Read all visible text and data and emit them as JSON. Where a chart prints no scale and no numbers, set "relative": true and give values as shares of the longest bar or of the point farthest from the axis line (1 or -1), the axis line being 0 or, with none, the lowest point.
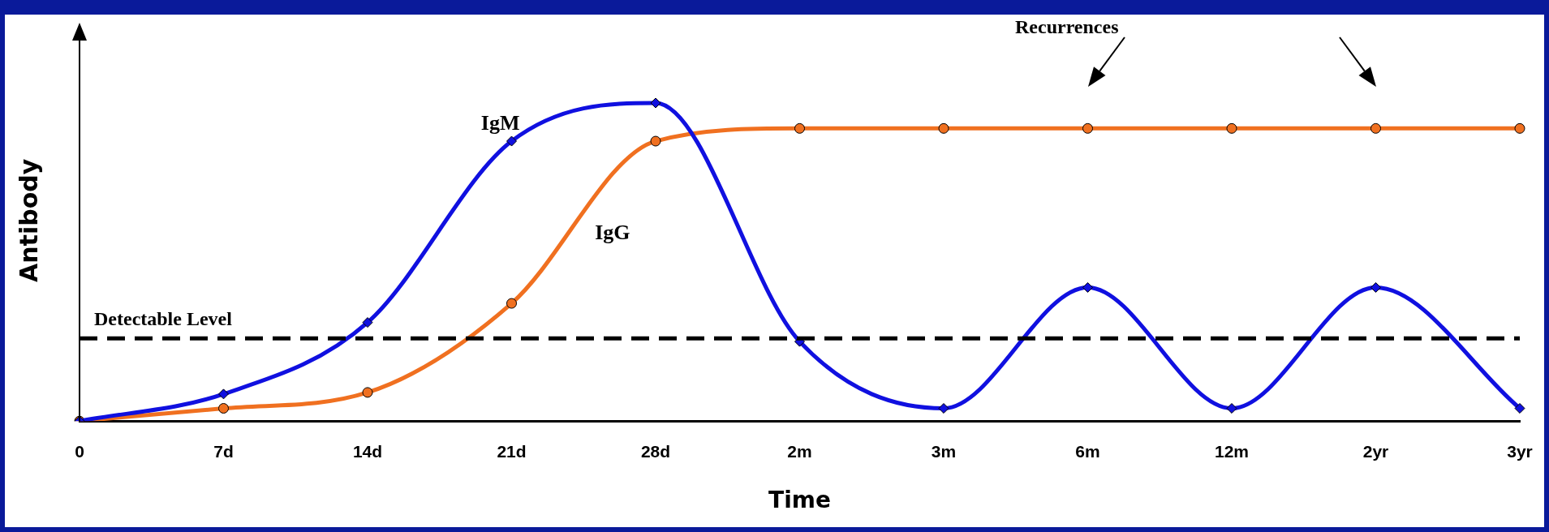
{
  "chart_data": {
    "type": "line",
    "relative": true,
    "xlabel": "Time",
    "ylabel": "Antibody",
    "categories": [
      "0",
      "7d",
      "14d",
      "21d",
      "28d",
      "2m",
      "3m",
      "6m",
      "12m",
      "2yr",
      "3yr"
    ],
    "series": [
      {
        "name": "IgM",
        "color": "#1010e0",
        "marker": "diamond",
        "values": [
          0,
          0.085,
          0.31,
          0.88,
          1,
          0.25,
          0.04,
          0.42,
          0.04,
          0.42,
          0.04
        ]
      },
      {
        "name": "IgG",
        "color": "#f07020",
        "marker": "circle",
        "values": [
          0,
          0.04,
          0.09,
          0.37,
          0.88,
          0.92,
          0.92,
          0.92,
          0.92,
          0.92,
          0.92
        ]
      }
    ],
    "ref_lines": [
      {
        "axis": "y",
        "value": 0.26,
        "label": "Detectable Level",
        "color": "#000000",
        "line_style": "dashed"
      }
    ],
    "annotations": [
      "Recurrences"
    ],
    "grid": false,
    "legend": false,
    "line_style": "solid"
  }
}
